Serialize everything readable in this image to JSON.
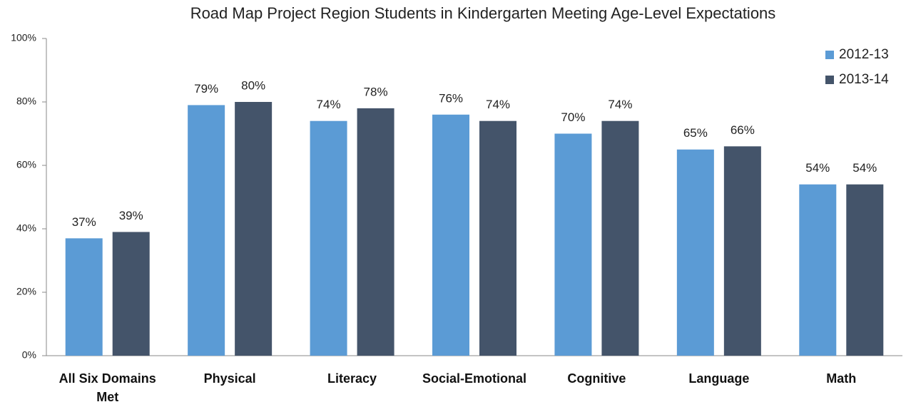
{
  "chart_data": {
    "type": "bar",
    "title": "Road Map Project Region Students in Kindergarten Meeting Age-Level Expectations",
    "categories": [
      "All Six Domains Met",
      "Physical",
      "Literacy",
      "Social-Emotional",
      "Cognitive",
      "Language",
      "Math"
    ],
    "series": [
      {
        "name": "2012-13",
        "color": "#5b9bd5",
        "values": [
          37,
          79,
          74,
          76,
          70,
          65,
          54
        ],
        "value_labels": [
          "37%",
          "79%",
          "74%",
          "76%",
          "70%",
          "65%",
          "54%"
        ]
      },
      {
        "name": "2013-14",
        "color": "#44546a",
        "values": [
          39,
          80,
          78,
          74,
          74,
          66,
          54
        ],
        "value_labels": [
          "39%",
          "80%",
          "78%",
          "74%",
          "74%",
          "66%",
          "54%"
        ]
      }
    ],
    "ylim": [
      0,
      100
    ],
    "yticks": [
      {
        "value": 0,
        "label": "0%"
      },
      {
        "value": 20,
        "label": "20%"
      },
      {
        "value": 40,
        "label": "40%"
      },
      {
        "value": 60,
        "label": "60%"
      },
      {
        "value": 80,
        "label": "80%"
      },
      {
        "value": 100,
        "label": "100%"
      }
    ],
    "legend": "top-right",
    "grid": false
  }
}
